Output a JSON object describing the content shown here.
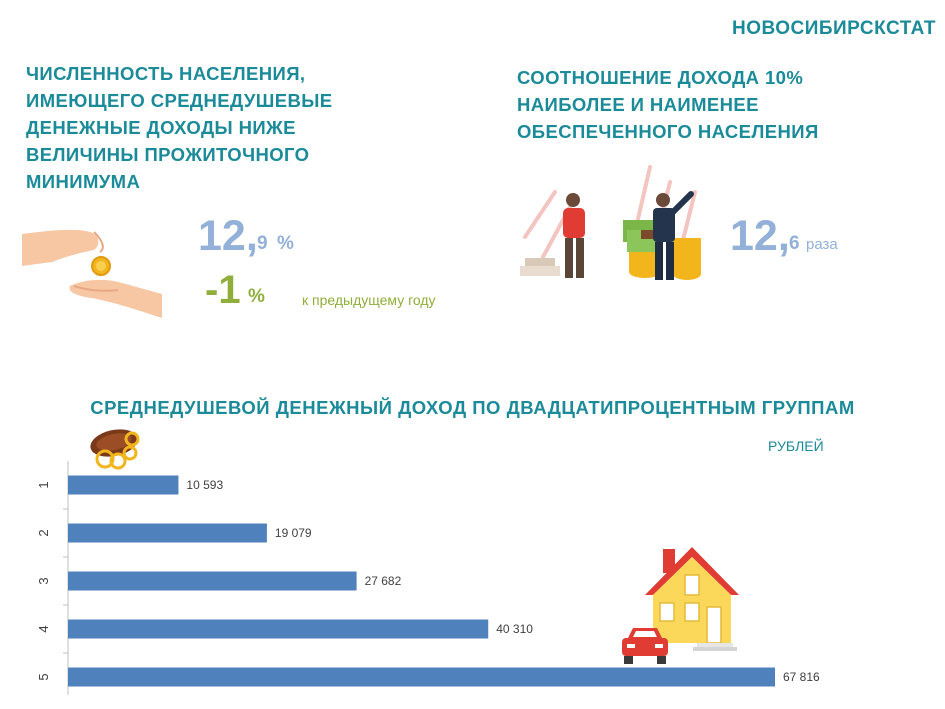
{
  "header": {
    "brand": "НОВОСИБИРСКСТАТ"
  },
  "poverty": {
    "title_lines": [
      "ЧИСЛЕННОСТЬ НАСЕЛЕНИЯ,",
      "ИМЕЮЩЕГО СРЕДНЕДУШЕВЫЕ",
      "ДЕНЕЖНЫЕ ДОХОДЫ НИЖЕ",
      "ВЕЛИЧИНЫ ПРОЖИТОЧНОГО",
      "МИНИМУМА"
    ],
    "value_int": "12,",
    "value_dec": "9",
    "unit": "%",
    "change_value": "-1",
    "change_unit": "%",
    "change_note": "к предыдущему году"
  },
  "ratio": {
    "title_lines": [
      "СООТНОШЕНИЕ ДОХОДА 10%",
      "НАИБОЛЕЕ  И НАИМЕНЕЕ",
      "ОБЕСПЕЧЕННОГО НАСЕЛЕНИЯ"
    ],
    "value_int": "12,",
    "value_dec": "6",
    "unit": "раза"
  },
  "colors": {
    "teal": "#1b8a99",
    "light_blue": "#93b0d8",
    "green": "#8fae3b",
    "bar": "#4f81bd"
  },
  "icons": [
    "hand-coin-icon",
    "rich-poor-people-icon",
    "wallet-coins-icon",
    "house-icon",
    "car-icon"
  ],
  "chart_data": {
    "type": "bar",
    "orientation": "horizontal",
    "title": "СРЕДНЕДУШЕВОЙ ДЕНЕЖНЫЙ ДОХОД ПО ДВАДЦАТИПРОЦЕНТНЫМ ГРУППАМ",
    "units": "РУБЛЕЙ",
    "categories": [
      "1",
      "2",
      "3",
      "4",
      "5"
    ],
    "values": [
      10593,
      19079,
      27682,
      40310,
      67816
    ],
    "value_labels": [
      "10 593",
      "19 079",
      "27 682",
      "40 310",
      "67 816"
    ],
    "xlim": [
      0,
      67816
    ],
    "grid": false
  }
}
